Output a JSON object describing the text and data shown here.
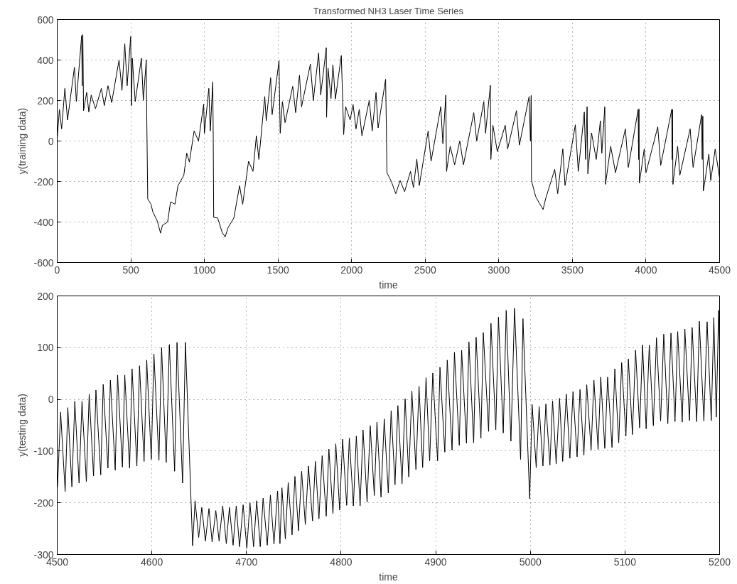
{
  "chart_data": [
    {
      "type": "line",
      "title": "Transformed NH3 Laser Time Series",
      "xlabel": "time",
      "ylabel": "y(training data)",
      "color": "#000000",
      "grid": true,
      "xlim": [
        0,
        4500
      ],
      "ylim": [
        -600,
        600
      ],
      "xticks": [
        0,
        500,
        1000,
        1500,
        2000,
        2500,
        3000,
        3500,
        4000,
        4500
      ],
      "yticks": [
        -600,
        -400,
        -200,
        0,
        200,
        400,
        600
      ],
      "x": [
        0,
        15,
        30,
        52,
        70,
        117,
        130,
        166,
        170,
        174,
        179,
        200,
        215,
        231,
        260,
        300,
        320,
        345,
        370,
        420,
        440,
        459,
        475,
        499,
        505,
        510,
        530,
        572,
        585,
        605,
        608,
        615,
        637,
        650,
        680,
        702,
        715,
        750,
        770,
        800,
        820,
        860,
        880,
        898,
        930,
        960,
        995,
        1000,
        1030,
        1040,
        1057,
        1060,
        1063,
        1090,
        1120,
        1141,
        1160,
        1200,
        1239,
        1260,
        1300,
        1330,
        1353,
        1370,
        1410,
        1420,
        1450,
        1460,
        1507,
        1512,
        1515,
        1530,
        1548,
        1600,
        1620,
        1646,
        1660,
        1720,
        1740,
        1776,
        1790,
        1828,
        1830,
        1840,
        1860,
        1873,
        1890,
        1930,
        1940,
        1946,
        1960,
        1990,
        2010,
        2030,
        2052,
        2070,
        2120,
        2140,
        2166,
        2180,
        2231,
        2236,
        2240,
        2270,
        2300,
        2330,
        2360,
        2400,
        2420,
        2443,
        2460,
        2520,
        2540,
        2606,
        2620,
        2640,
        2645,
        2670,
        2700,
        2735,
        2760,
        2830,
        2850,
        2898,
        2910,
        2943,
        2946,
        2960,
        2990,
        3044,
        3060,
        3120,
        3140,
        3206,
        3215,
        3220,
        3222,
        3250,
        3270,
        3301,
        3320,
        3380,
        3400,
        3435,
        3450,
        3520,
        3540,
        3581,
        3590,
        3600,
        3605,
        3630,
        3662,
        3690,
        3700,
        3720,
        3725,
        3760,
        3793,
        3860,
        3880,
        3947,
        3950,
        3952,
        3955,
        3988,
        4000,
        4080,
        4100,
        4175,
        4178,
        4180,
        4183,
        4215,
        4230,
        4300,
        4320,
        4378,
        4382,
        4386,
        4390,
        4427,
        4440,
        4470,
        4500
      ],
      "values": [
        13,
        156,
        60,
        260,
        104,
        364,
        195,
        520,
        273,
        526,
        150,
        240,
        143,
        227,
        160,
        260,
        175,
        273,
        190,
        400,
        250,
        480,
        273,
        516,
        175,
        409,
        195,
        409,
        201,
        400,
        136,
        -286,
        -312,
        -351,
        -395,
        -455,
        -416,
        -400,
        -300,
        -312,
        -221,
        -170,
        -60,
        -104,
        50,
        0,
        182,
        39,
        260,
        50,
        292,
        13,
        -377,
        -380,
        -450,
        -474,
        -429,
        -380,
        -221,
        -312,
        -100,
        -150,
        26,
        -91,
        220,
        100,
        312,
        130,
        396,
        150,
        39,
        195,
        91,
        270,
        140,
        325,
        169,
        380,
        200,
        435,
        227,
        461,
        117,
        360,
        210,
        377,
        208,
        422,
        190,
        32,
        169,
        104,
        180,
        60,
        156,
        26,
        200,
        50,
        240,
        65,
        305,
        80,
        -156,
        -200,
        -260,
        -195,
        -250,
        -150,
        -230,
        -90,
        -220,
        50,
        -100,
        170,
        -13,
        227,
        -150,
        -26,
        -117,
        0,
        -117,
        140,
        0,
        195,
        39,
        275,
        -91,
        78,
        -52,
        78,
        -39,
        150,
        -20,
        220,
        0,
        225,
        -195,
        -273,
        -300,
        -338,
        -280,
        -140,
        -260,
        -39,
        -220,
        80,
        -150,
        143,
        -91,
        169,
        -162,
        40,
        -91,
        100,
        -60,
        169,
        -214,
        -26,
        -156,
        60,
        -130,
        156,
        -91,
        158,
        -208,
        -39,
        -156,
        70,
        -120,
        156,
        -91,
        156,
        -214,
        -26,
        -169,
        60,
        -130,
        130,
        -91,
        123,
        -247,
        -65,
        -195,
        -40,
        -182
      ]
    },
    {
      "type": "line",
      "xlabel": "time",
      "ylabel": "y(testing data)",
      "color": "#000000",
      "grid": true,
      "xlim": [
        4500,
        5200
      ],
      "ylim": [
        -300,
        200
      ],
      "xticks": [
        4500,
        4600,
        4700,
        4800,
        4900,
        5000,
        5100,
        5200
      ],
      "yticks": [
        -300,
        -200,
        -100,
        0,
        100,
        200
      ],
      "x": [
        4500.3,
        4503.6,
        4508.4,
        4511.2,
        4515.5,
        4518.6,
        4523.1,
        4526.2,
        4530.8,
        4533.8,
        4538.4,
        4540.9,
        4546.0,
        4548.6,
        4553.6,
        4556.2,
        4561.3,
        4563.8,
        4568.9,
        4571.4,
        4576.5,
        4579.1,
        4584.2,
        4587.0,
        4591.8,
        4594.6,
        4599.4,
        4602.2,
        4607.5,
        4610.3,
        4615.2,
        4618.5,
        4624.1,
        4626.6,
        4632.5,
        4635.5,
        4643.1,
        4645.7,
        4649.5,
        4652.8,
        4656.6,
        4660.4,
        4663.7,
        4667.6,
        4671.1,
        4674.9,
        4678.7,
        4682.0,
        4685.9,
        4689.2,
        4692.7,
        4696.5,
        4700.4,
        4703.7,
        4707.5,
        4710.8,
        4714.6,
        4717.6,
        4722.0,
        4725.3,
        4729.1,
        4732.9,
        4735.4,
        4737.5,
        4741.1,
        4744.1,
        4748.2,
        4751.2,
        4755.0,
        4758.3,
        4762.2,
        4765.5,
        4769.8,
        4772.8,
        4776.6,
        4780.0,
        4784.3,
        4787.1,
        4791.4,
        4794.4,
        4798.5,
        4801.6,
        4805.9,
        4808.7,
        4813.0,
        4816.1,
        4820.1,
        4823.2,
        4827.5,
        4830.8,
        4835.1,
        4837.9,
        4842.2,
        4845.6,
        4849.9,
        4852.9,
        4857.0,
        4860.0,
        4864.4,
        4867.7,
        4871.5,
        4874.8,
        4879.1,
        4882.4,
        4886.2,
        4889.8,
        4893.6,
        4896.9,
        4902.0,
        4904.5,
        4909.6,
        4912.2,
        4917.3,
        4919.8,
        4924.9,
        4927.4,
        4932.5,
        4935.1,
        4940.1,
        4942.7,
        4947.8,
        4950.3,
        4955.9,
        4958.4,
        4963.5,
        4966.3,
        4971.4,
        4974.5,
        4979.5,
        4983.3,
        4989.7,
        4992.2,
        4999.3,
        5001.9,
        5006.2,
        5009.3,
        5013.3,
        5016.4,
        5020.7,
        5023.5,
        5027.3,
        5030.9,
        5034.2,
        5038.0,
        5041.8,
        5045.1,
        5049.4,
        5052.5,
        5056.6,
        5059.6,
        5064.2,
        5067.2,
        5071.6,
        5074.4,
        5078.7,
        5081.7,
        5086.3,
        5089.3,
        5093.4,
        5096.5,
        5101.0,
        5103.6,
        5107.9,
        5111.2,
        5115.5,
        5118.6,
        5122.4,
        5125.7,
        5130.0,
        5133.3,
        5137.7,
        5141.0,
        5145.3,
        5148.6,
        5152.9,
        5155.7,
        5160.5,
        5163.3,
        5168.2,
        5171.0,
        5175.8,
        5178.6,
        5183.4,
        5186.8,
        5191.2,
        5193.9,
        5196.5,
        5199.0,
        5200
      ],
      "values": [
        -170,
        -25,
        -178,
        -16,
        -169,
        -4,
        -162,
        -4,
        -159,
        10,
        -148,
        18,
        -146,
        29,
        -133,
        37,
        -137,
        47,
        -131,
        47,
        -133,
        59,
        -129,
        65,
        -120,
        76,
        -116,
        88,
        -118,
        100,
        -122,
        106,
        -139,
        110,
        -162,
        110,
        -283,
        -196,
        -267,
        -209,
        -274,
        -211,
        -276,
        -215,
        -274,
        -206,
        -279,
        -209,
        -282,
        -206,
        -285,
        -204,
        -288,
        -200,
        -285,
        -196,
        -285,
        -191,
        -282,
        -185,
        -280,
        -177,
        -279,
        -171,
        -270,
        -161,
        -262,
        -149,
        -254,
        -139,
        -242,
        -129,
        -235,
        -120,
        -231,
        -109,
        -226,
        -96,
        -221,
        -86,
        -214,
        -77,
        -205,
        -75,
        -206,
        -71,
        -206,
        -59,
        -199,
        -51,
        -186,
        -44,
        -189,
        -38,
        -181,
        -22,
        -165,
        -12,
        -163,
        1,
        -150,
        16,
        -136,
        25,
        -132,
        42,
        -119,
        51,
        -119,
        62,
        -102,
        76,
        -98,
        91,
        -89,
        95,
        -85,
        111,
        -84,
        120,
        -75,
        129,
        -62,
        147,
        -59,
        159,
        -65,
        172,
        -81,
        176,
        -116,
        156,
        -192,
        -10,
        -132,
        -14,
        -129,
        -9,
        -127,
        -3,
        -125,
        2,
        -120,
        10,
        -114,
        15,
        -111,
        19,
        -108,
        28,
        -98,
        37,
        -97,
        43,
        -95,
        43,
        -93,
        59,
        -84,
        71,
        -71,
        78,
        -68,
        95,
        -55,
        105,
        -57,
        105,
        -51,
        119,
        -42,
        126,
        -47,
        128,
        -43,
        131,
        -44,
        136,
        -41,
        139,
        -43,
        151,
        -42,
        150,
        -41,
        158,
        -34,
        172,
        100
      ]
    }
  ]
}
